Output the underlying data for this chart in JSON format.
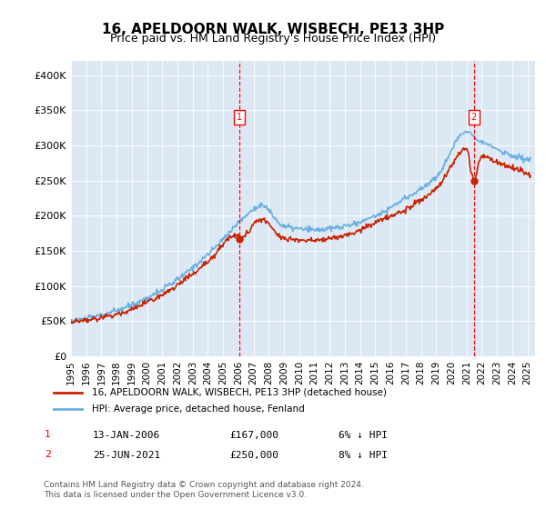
{
  "title": "16, APELDOORN WALK, WISBECH, PE13 3HP",
  "subtitle": "Price paid vs. HM Land Registry's House Price Index (HPI)",
  "ylabel_ticks": [
    "£0",
    "£50K",
    "£100K",
    "£150K",
    "£200K",
    "£250K",
    "£300K",
    "£350K",
    "£400K"
  ],
  "ylim": [
    0,
    420000
  ],
  "xlim_start": 1995.0,
  "xlim_end": 2025.5,
  "bg_color": "#dce9f5",
  "plot_bg": "#dce9f5",
  "hpi_line_color": "#6ab0e0",
  "price_line_color": "#cc2200",
  "marker1_x": 2006.04,
  "marker1_y": 167000,
  "marker2_x": 2021.48,
  "marker2_y": 250000,
  "legend_label1": "16, APELDOORN WALK, WISBECH, PE13 3HP (detached house)",
  "legend_label2": "HPI: Average price, detached house, Fenland",
  "table_row1": [
    "1",
    "13-JAN-2006",
    "£167,000",
    "6% ↓ HPI"
  ],
  "table_row2": [
    "2",
    "25-JUN-2021",
    "£250,000",
    "8% ↓ HPI"
  ],
  "footer": "Contains HM Land Registry data © Crown copyright and database right 2024.\nThis data is licensed under the Open Government Licence v3.0.",
  "xtick_years": [
    1995,
    1996,
    1997,
    1998,
    1999,
    2000,
    2001,
    2002,
    2003,
    2004,
    2005,
    2006,
    2007,
    2008,
    2009,
    2010,
    2011,
    2012,
    2013,
    2014,
    2015,
    2016,
    2017,
    2018,
    2019,
    2020,
    2021,
    2022,
    2023,
    2024,
    2025
  ]
}
